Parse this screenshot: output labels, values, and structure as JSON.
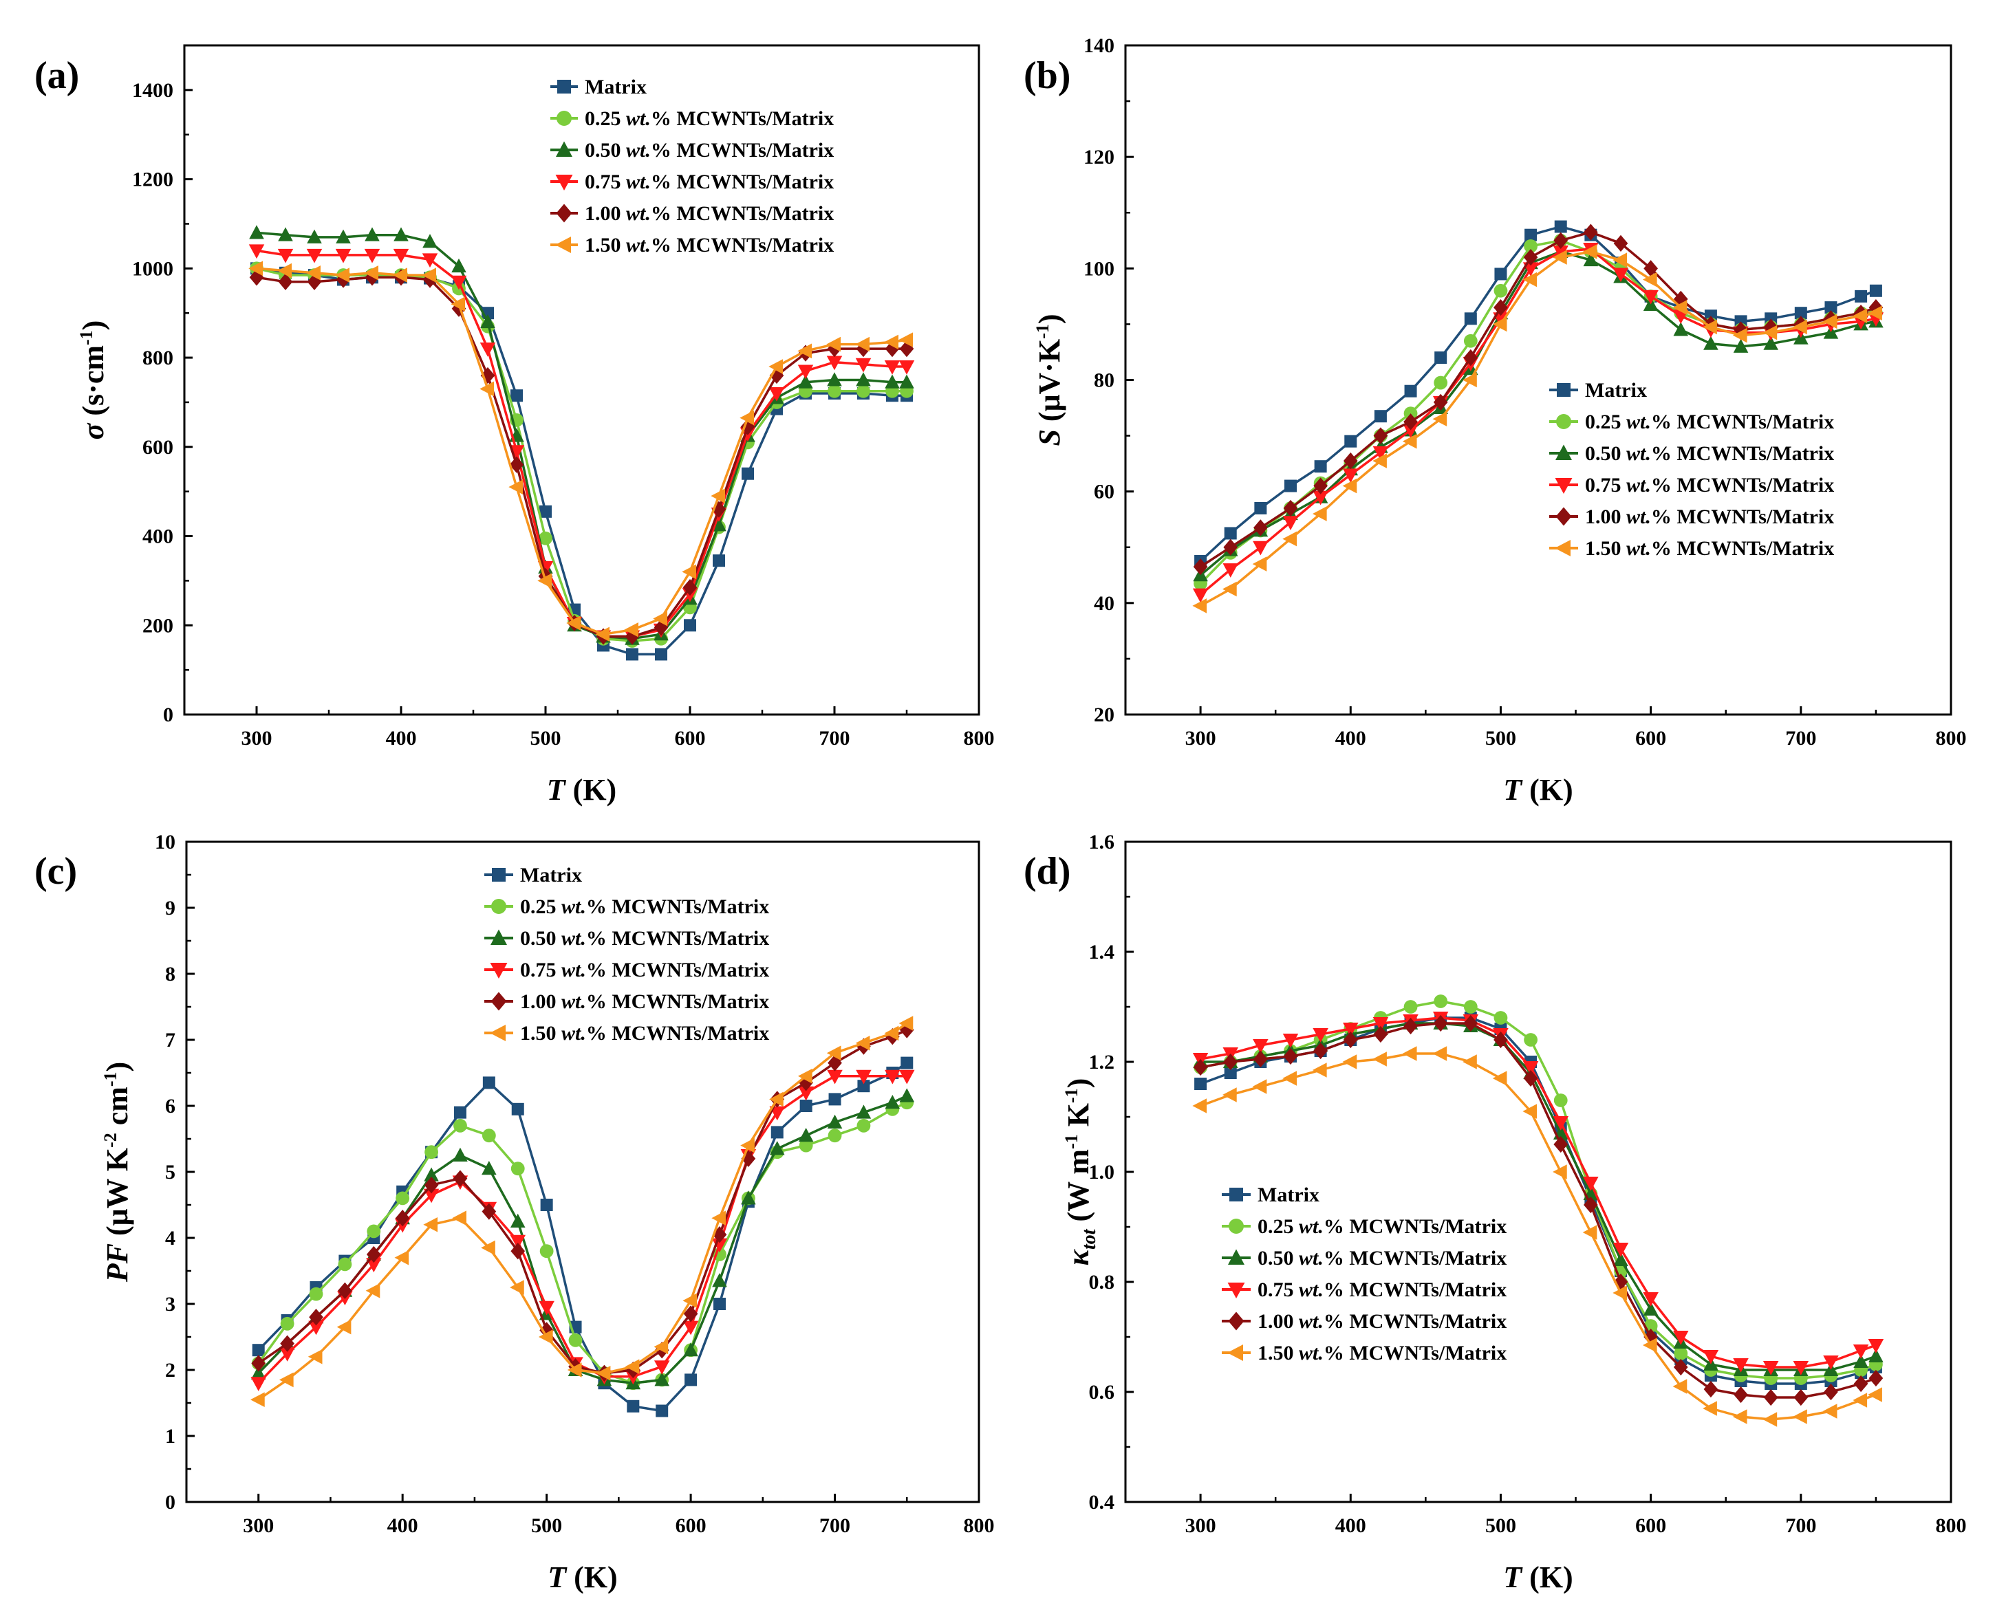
{
  "chart_data": [
    {
      "panel": "(a)",
      "type": "line",
      "xlabel_var": "T",
      "xlabel_unit": " (K)",
      "ylabel_var": "σ",
      "ylabel_unit": " (s·cm",
      "ylabel_sup": "-1",
      "ylabel_close": ")",
      "xlim": [
        250,
        800
      ],
      "ylim": [
        0,
        1500
      ],
      "xticks": [
        300,
        400,
        500,
        600,
        700,
        800
      ],
      "yticks": [
        0,
        200,
        400,
        600,
        800,
        1000,
        1200,
        1400
      ],
      "legend_position": "top-right",
      "x": [
        300,
        320,
        340,
        360,
        380,
        400,
        420,
        440,
        460,
        480,
        500,
        520,
        540,
        560,
        580,
        600,
        620,
        640,
        660,
        680,
        700,
        720,
        740,
        750
      ],
      "series": [
        {
          "name": "Matrix",
          "values": [
            1000,
            990,
            985,
            975,
            980,
            980,
            978,
            960,
            900,
            715,
            455,
            235,
            155,
            135,
            135,
            200,
            345,
            540,
            685,
            720,
            720,
            720,
            715,
            715
          ]
        },
        {
          "name": "0.25 wt.% MCWNTs/Matrix",
          "values": [
            1000,
            985,
            985,
            985,
            985,
            985,
            980,
            955,
            870,
            660,
            395,
            210,
            170,
            165,
            170,
            240,
            420,
            610,
            700,
            725,
            725,
            725,
            725,
            725
          ]
        },
        {
          "name": "0.50 wt.% MCWNTs/Matrix",
          "values": [
            1080,
            1075,
            1070,
            1070,
            1075,
            1075,
            1060,
            1005,
            880,
            625,
            330,
            200,
            175,
            170,
            180,
            260,
            425,
            625,
            710,
            745,
            750,
            750,
            745,
            745
          ]
        },
        {
          "name": "0.75 wt.% MCWNTs/Matrix",
          "values": [
            1040,
            1030,
            1030,
            1030,
            1030,
            1030,
            1020,
            970,
            820,
            590,
            330,
            205,
            175,
            175,
            190,
            270,
            450,
            630,
            720,
            770,
            790,
            785,
            780,
            780
          ]
        },
        {
          "name": "1.00 wt.% MCWNTs/Matrix",
          "values": [
            980,
            970,
            970,
            975,
            980,
            980,
            975,
            910,
            760,
            560,
            310,
            205,
            175,
            175,
            195,
            285,
            460,
            645,
            760,
            810,
            820,
            820,
            820,
            820
          ]
        },
        {
          "name": "1.50 wt.% MCWNTs/Matrix",
          "values": [
            1000,
            995,
            990,
            985,
            990,
            985,
            985,
            920,
            730,
            510,
            300,
            205,
            180,
            190,
            215,
            320,
            490,
            665,
            780,
            815,
            830,
            830,
            835,
            840
          ]
        }
      ]
    },
    {
      "panel": "(b)",
      "type": "line",
      "xlabel_var": "T",
      "xlabel_unit": " (K)",
      "ylabel_var": "S",
      "ylabel_unit": " (μV·K",
      "ylabel_sup": "-1",
      "ylabel_close": ")",
      "xlim": [
        250,
        800
      ],
      "ylim": [
        20,
        140
      ],
      "xticks": [
        300,
        400,
        500,
        600,
        700,
        800
      ],
      "yticks": [
        20,
        40,
        60,
        80,
        100,
        120,
        140
      ],
      "legend_position": "center-right",
      "x": [
        300,
        320,
        340,
        360,
        380,
        400,
        420,
        440,
        460,
        480,
        500,
        520,
        540,
        560,
        580,
        600,
        620,
        640,
        660,
        680,
        700,
        720,
        740,
        750
      ],
      "series": [
        {
          "name": "Matrix",
          "values": [
            47.5,
            52.5,
            57,
            61,
            64.5,
            69,
            73.5,
            78,
            84,
            91,
            99,
            106,
            107.5,
            106,
            101,
            95,
            93,
            91.5,
            90.5,
            91,
            92,
            93,
            95,
            96
          ]
        },
        {
          "name": "0.25 wt.% MCWNTs/Matrix",
          "values": [
            43.5,
            49,
            53,
            57,
            61.5,
            65,
            70,
            74,
            79.5,
            87,
            96,
            104,
            105,
            103,
            100,
            95,
            92,
            90,
            89,
            89.5,
            90,
            91,
            92,
            92
          ]
        },
        {
          "name": "0.50 wt.% MCWNTs/Matrix",
          "values": [
            45,
            49.5,
            53,
            56,
            59,
            64,
            68,
            71,
            75,
            82,
            92,
            101,
            103,
            101.5,
            98.5,
            93.5,
            89,
            86.5,
            86,
            86.5,
            87.5,
            88.5,
            90,
            90.5
          ]
        },
        {
          "name": "0.75 wt.% MCWNTs/Matrix",
          "values": [
            41.5,
            46,
            50,
            54.5,
            59,
            63,
            67,
            71,
            76,
            83,
            91,
            100,
            103,
            103.5,
            99,
            95,
            91.5,
            89,
            88.5,
            88.5,
            89,
            90,
            90.5,
            91
          ]
        },
        {
          "name": "1.00 wt.% MCWNTs/Matrix",
          "values": [
            46.5,
            50,
            53.5,
            57,
            61,
            65.5,
            70,
            72.5,
            76,
            84,
            93,
            102,
            105,
            106.5,
            104.5,
            100,
            94.5,
            90,
            89,
            89.5,
            90,
            91,
            92,
            93
          ]
        },
        {
          "name": "1.50 wt.% MCWNTs/Matrix",
          "values": [
            39.5,
            42.5,
            47,
            51.5,
            56,
            61,
            65.5,
            69,
            73,
            80,
            90,
            98,
            102,
            103,
            101.5,
            98,
            93,
            89.5,
            88,
            88.5,
            89.5,
            90.5,
            91.5,
            92
          ]
        }
      ]
    },
    {
      "panel": "(c)",
      "type": "line",
      "xlabel_var": "T",
      "xlabel_unit": " (K)",
      "ylabel_var": "PF",
      "ylabel_unit": " (μW K",
      "ylabel_sup": "-2",
      "ylabel_unit2": " cm",
      "ylabel_sup2": "-1",
      "ylabel_close": ")",
      "xlim": [
        250,
        800
      ],
      "ylim": [
        0,
        10
      ],
      "xticks": [
        300,
        400,
        500,
        600,
        700,
        800
      ],
      "yticks": [
        0,
        1,
        2,
        3,
        4,
        5,
        6,
        7,
        8,
        9,
        10
      ],
      "legend_position": "top-right",
      "x": [
        300,
        320,
        340,
        360,
        380,
        400,
        420,
        440,
        460,
        480,
        500,
        520,
        540,
        560,
        580,
        600,
        620,
        640,
        660,
        680,
        700,
        720,
        740,
        750
      ],
      "series": [
        {
          "name": "Matrix",
          "values": [
            2.3,
            2.75,
            3.25,
            3.65,
            4,
            4.7,
            5.3,
            5.9,
            6.35,
            5.95,
            4.5,
            2.65,
            1.8,
            1.45,
            1.38,
            1.85,
            3,
            4.55,
            5.6,
            6,
            6.1,
            6.3,
            6.5,
            6.65
          ]
        },
        {
          "name": "0.25 wt.% MCWNTs/Matrix",
          "values": [
            2.1,
            2.7,
            3.15,
            3.6,
            4.1,
            4.6,
            5.3,
            5.7,
            5.55,
            5.05,
            3.8,
            2.45,
            1.95,
            1.8,
            1.85,
            2.3,
            3.75,
            4.6,
            5.3,
            5.4,
            5.55,
            5.7,
            5.95,
            6.05
          ]
        },
        {
          "name": "0.50 wt.% MCWNTs/Matrix",
          "values": [
            1.95,
            2.4,
            2.8,
            3.2,
            3.75,
            4.3,
            4.95,
            5.25,
            5.05,
            4.25,
            2.85,
            2,
            1.85,
            1.8,
            1.85,
            2.3,
            3.35,
            4.6,
            5.35,
            5.55,
            5.75,
            5.9,
            6.05,
            6.15
          ]
        },
        {
          "name": "0.75 wt.% MCWNTs/Matrix",
          "values": [
            1.8,
            2.25,
            2.65,
            3.1,
            3.6,
            4.2,
            4.65,
            4.85,
            4.45,
            3.95,
            2.95,
            2.1,
            1.9,
            1.9,
            2.05,
            2.65,
            3.9,
            5.25,
            5.9,
            6.2,
            6.45,
            6.45,
            6.45,
            6.45
          ]
        },
        {
          "name": "1.00 wt.% MCWNTs/Matrix",
          "values": [
            2.1,
            2.4,
            2.8,
            3.2,
            3.75,
            4.3,
            4.8,
            4.9,
            4.4,
            3.8,
            2.6,
            2.05,
            1.95,
            2,
            2.3,
            2.85,
            4.05,
            5.2,
            6.1,
            6.35,
            6.65,
            6.9,
            7.05,
            7.15
          ]
        },
        {
          "name": "1.50 wt.% MCWNTs/Matrix",
          "values": [
            1.55,
            1.85,
            2.2,
            2.65,
            3.2,
            3.7,
            4.2,
            4.3,
            3.85,
            3.25,
            2.5,
            2,
            1.95,
            2.05,
            2.35,
            3.05,
            4.3,
            5.4,
            6.1,
            6.45,
            6.8,
            6.95,
            7.1,
            7.25
          ]
        }
      ]
    },
    {
      "panel": "(d)",
      "type": "line",
      "xlabel_var": "T",
      "xlabel_unit": " (K)",
      "ylabel_var": "κ",
      "ylabel_sub": "tot",
      "ylabel_unit": " (W m",
      "ylabel_sup": "-1",
      "ylabel_unit2": " K",
      "ylabel_sup2": "-1",
      "ylabel_close": ")",
      "xlim": [
        250,
        800
      ],
      "ylim": [
        0.4,
        1.6
      ],
      "xticks": [
        300,
        400,
        500,
        600,
        700,
        800
      ],
      "yticks": [
        0.4,
        0.6,
        0.8,
        1.0,
        1.2,
        1.4,
        1.6
      ],
      "legend_position": "lower-left",
      "x": [
        300,
        320,
        340,
        360,
        380,
        400,
        420,
        440,
        460,
        480,
        500,
        520,
        540,
        560,
        580,
        600,
        620,
        640,
        660,
        680,
        700,
        720,
        740,
        750
      ],
      "series": [
        {
          "name": "Matrix",
          "values": [
            1.16,
            1.18,
            1.2,
            1.21,
            1.22,
            1.24,
            1.26,
            1.27,
            1.28,
            1.28,
            1.26,
            1.2,
            1.08,
            0.95,
            0.82,
            0.71,
            0.66,
            0.63,
            0.62,
            0.615,
            0.615,
            0.62,
            0.635,
            0.645
          ]
        },
        {
          "name": "0.25 wt.% MCWNTs/Matrix",
          "values": [
            1.19,
            1.2,
            1.21,
            1.22,
            1.24,
            1.26,
            1.28,
            1.3,
            1.31,
            1.3,
            1.28,
            1.24,
            1.13,
            0.96,
            0.82,
            0.72,
            0.67,
            0.64,
            0.63,
            0.625,
            0.625,
            0.63,
            0.64,
            0.65
          ]
        },
        {
          "name": "0.50 wt.% MCWNTs/Matrix",
          "values": [
            1.2,
            1.2,
            1.21,
            1.22,
            1.23,
            1.25,
            1.26,
            1.27,
            1.27,
            1.265,
            1.24,
            1.18,
            1.07,
            0.96,
            0.84,
            0.75,
            0.69,
            0.65,
            0.64,
            0.64,
            0.64,
            0.64,
            0.655,
            0.665
          ]
        },
        {
          "name": "0.75 wt.% MCWNTs/Matrix",
          "values": [
            1.205,
            1.215,
            1.23,
            1.24,
            1.25,
            1.26,
            1.27,
            1.275,
            1.28,
            1.275,
            1.25,
            1.19,
            1.09,
            0.98,
            0.86,
            0.77,
            0.7,
            0.665,
            0.65,
            0.645,
            0.645,
            0.655,
            0.675,
            0.685
          ]
        },
        {
          "name": "1.00 wt.% MCWNTs/Matrix",
          "values": [
            1.19,
            1.2,
            1.205,
            1.21,
            1.22,
            1.24,
            1.25,
            1.265,
            1.27,
            1.27,
            1.24,
            1.17,
            1.05,
            0.94,
            0.8,
            0.7,
            0.645,
            0.605,
            0.595,
            0.59,
            0.59,
            0.6,
            0.615,
            0.625
          ]
        },
        {
          "name": "1.50 wt.% MCWNTs/Matrix",
          "values": [
            1.12,
            1.14,
            1.155,
            1.17,
            1.185,
            1.2,
            1.205,
            1.215,
            1.215,
            1.2,
            1.17,
            1.11,
            1.0,
            0.89,
            0.78,
            0.685,
            0.61,
            0.57,
            0.555,
            0.55,
            0.555,
            0.565,
            0.585,
            0.595
          ]
        }
      ]
    }
  ],
  "legend_labels": [
    {
      "prefix": "Matrix",
      "wt": "",
      "suffix": ""
    },
    {
      "prefix": "0.25 ",
      "wt": "wt.",
      "suffix": "% MCWNTs/Matrix"
    },
    {
      "prefix": "0.50 ",
      "wt": "wt.",
      "suffix": "% MCWNTs/Matrix"
    },
    {
      "prefix": "0.75 ",
      "wt": "wt.",
      "suffix": "% MCWNTs/Matrix"
    },
    {
      "prefix": "1.00 ",
      "wt": "wt.",
      "suffix": "% MCWNTs/Matrix"
    },
    {
      "prefix": "1.50 ",
      "wt": "wt.",
      "suffix": "% MCWNTs/Matrix"
    }
  ],
  "series_styles": [
    {
      "color": "#1f4e79",
      "marker": "square"
    },
    {
      "color": "#7ccd3c",
      "marker": "circle"
    },
    {
      "color": "#1e6b1e",
      "marker": "triangle-up"
    },
    {
      "color": "#ff1a1a",
      "marker": "triangle-down"
    },
    {
      "color": "#8b0f0f",
      "marker": "diamond"
    },
    {
      "color": "#f7941d",
      "marker": "triangle-left"
    }
  ]
}
